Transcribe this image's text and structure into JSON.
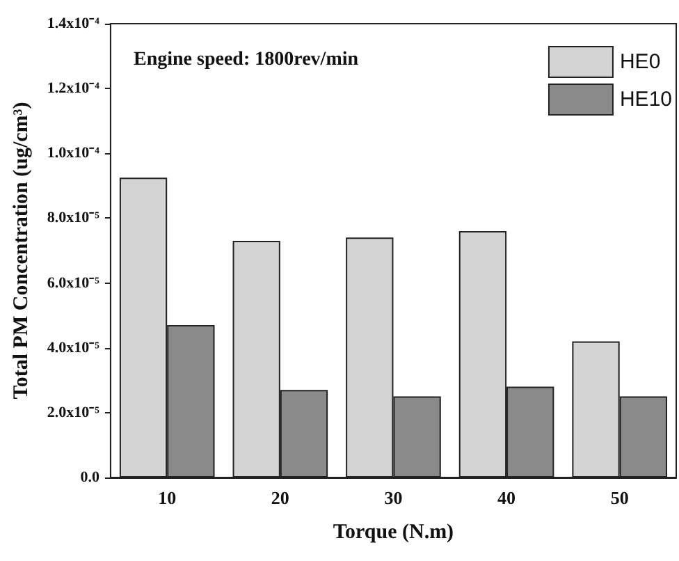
{
  "chart_data": {
    "type": "bar",
    "xlabel": "Torque (N.m)",
    "ylabel": "Total PM Concentration (ug/cm³)",
    "annotations": [
      "Engine speed: 1800rev/min"
    ],
    "categories": [
      "10",
      "20",
      "30",
      "40",
      "50"
    ],
    "series": [
      {
        "name": "HE0",
        "color": "#d4d4d4",
        "values": [
          9.25e-05,
          7.3e-05,
          7.4e-05,
          7.6e-05,
          4.2e-05
        ]
      },
      {
        "name": "HE10",
        "color": "#8a8a8a",
        "values": [
          4.7e-05,
          2.7e-05,
          2.5e-05,
          2.8e-05,
          2.5e-05
        ]
      }
    ],
    "ylim": [
      0,
      0.00014
    ],
    "yticks": [
      {
        "value": 0,
        "label": "0.0"
      },
      {
        "value": 2e-05,
        "label": "2.0x10⁻⁵"
      },
      {
        "value": 4e-05,
        "label": "4.0x10⁻⁵"
      },
      {
        "value": 6e-05,
        "label": "6.0x10⁻⁵"
      },
      {
        "value": 8e-05,
        "label": "8.0x10⁻⁵"
      },
      {
        "value": 0.0001,
        "label": "1.0x10⁻⁴"
      },
      {
        "value": 0.00012,
        "label": "1.2x10⁻⁴"
      },
      {
        "value": 0.00014,
        "label": "1.4x10⁻⁴"
      }
    ],
    "legend": "top right",
    "grid": false
  }
}
